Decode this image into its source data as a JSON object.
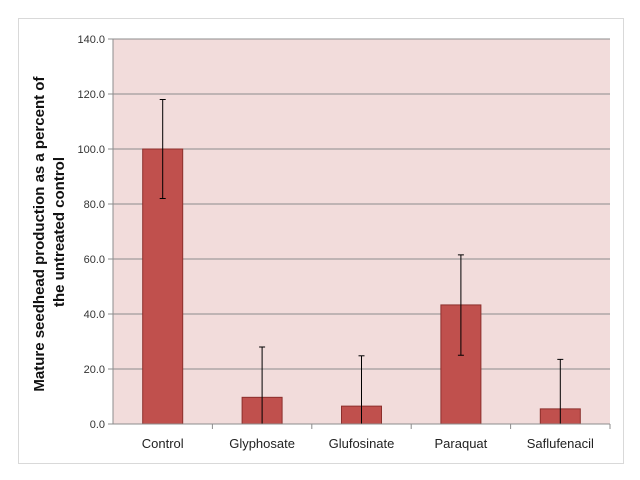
{
  "chart_data": {
    "type": "bar",
    "categories": [
      "Control",
      "Glyphosate",
      "Glufosinate",
      "Paraquat",
      "Saflufenacil"
    ],
    "values": [
      100.0,
      9.7,
      6.5,
      43.3,
      5.5
    ],
    "error_high": [
      118.0,
      28.0,
      24.8,
      61.5,
      23.5
    ],
    "error_low": [
      82.0,
      0,
      0,
      25.0,
      0
    ],
    "ylabel_line1": "Mature seedhead production as a percent of",
    "ylabel_line2": "the untreated control",
    "xlabel": "",
    "ylim": [
      0,
      140
    ],
    "yticks": [
      "0.0",
      "20.0",
      "40.0",
      "60.0",
      "80.0",
      "100.0",
      "120.0",
      "140.0"
    ],
    "grid": true,
    "legend": "none",
    "colors": {
      "bar": "#c0504d",
      "bar_edge": "#8c2f2c",
      "plot_bg": "#f2dcdb",
      "grid": "#8c8c8c",
      "error": "#000000"
    }
  }
}
